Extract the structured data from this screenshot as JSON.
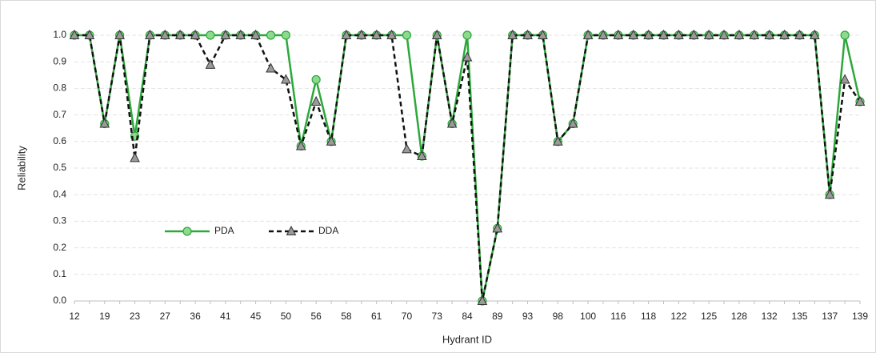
{
  "chart_data": {
    "type": "line",
    "y_label": "Reliability",
    "x_label": "Hydrant ID",
    "categories": [
      "12",
      null,
      "19",
      null,
      "23",
      null,
      "27",
      null,
      "36",
      null,
      "41",
      null,
      "45",
      null,
      "50",
      null,
      "56",
      null,
      "58",
      null,
      "61",
      null,
      "70",
      null,
      "73",
      null,
      "84",
      null,
      "89",
      null,
      "93",
      null,
      "98",
      null,
      "100",
      null,
      "116",
      null,
      "118",
      null,
      "122",
      null,
      "125",
      null,
      "128",
      null,
      "132",
      null,
      "135",
      null,
      "137",
      null,
      "139"
    ],
    "series": [
      {
        "name": "PDA",
        "color": "#2ca83a",
        "marker": "circle",
        "dash": false,
        "values": [
          1,
          1,
          0.667,
          1,
          0.62,
          1,
          1,
          1,
          1,
          1,
          1,
          1,
          1,
          1,
          1,
          0.583,
          0.833,
          0.6,
          1,
          1,
          1,
          1,
          1,
          0.545,
          1,
          0.667,
          1,
          0,
          0.273,
          1,
          1,
          1,
          0.6,
          0.667,
          1,
          1,
          1,
          1,
          1,
          1,
          1,
          1,
          1,
          1,
          1,
          1,
          1,
          1,
          1,
          1,
          0.4,
          1,
          0.75
        ]
      },
      {
        "name": "DDA",
        "color": "#111111",
        "marker": "triangle",
        "dash": true,
        "values": [
          1,
          1,
          0.667,
          1,
          0.538,
          1,
          1,
          1,
          1,
          0.889,
          1,
          1,
          1,
          0.875,
          0.833,
          0.583,
          0.75,
          0.6,
          1,
          1,
          1,
          1,
          0.571,
          0.545,
          1,
          0.667,
          0.917,
          0,
          0.273,
          1,
          1,
          1,
          0.6,
          0.667,
          1,
          1,
          1,
          1,
          1,
          1,
          1,
          1,
          1,
          1,
          1,
          1,
          1,
          1,
          1,
          1,
          0.4,
          0.833,
          0.75
        ]
      }
    ],
    "ylim": [
      0,
      1
    ],
    "yticks": [
      {
        "value": 0,
        "label": "0.0"
      },
      0.1,
      0.2,
      0.3,
      0.4,
      0.5,
      0.6,
      0.7,
      0.8,
      0.9,
      {
        "value": 1,
        "label": "1.0"
      }
    ],
    "grid": true,
    "legend": "lower-left"
  }
}
